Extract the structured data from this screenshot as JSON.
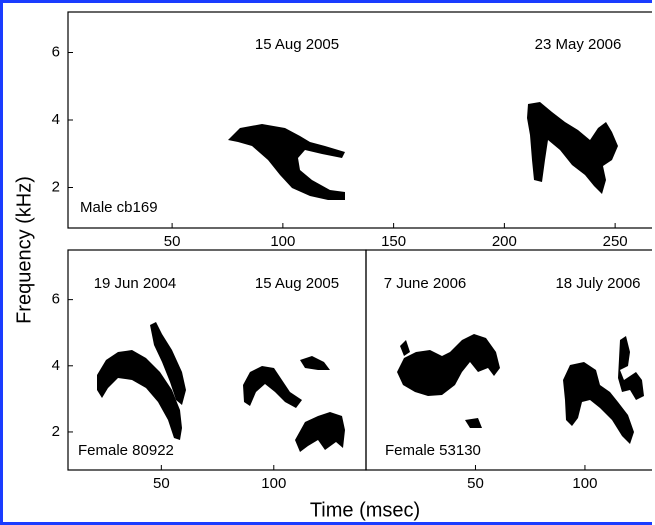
{
  "chart_data": [
    {
      "type": "spectrogram",
      "label": "Male cb169",
      "annotations": [
        "15 Aug 2005",
        "23 May 2006"
      ],
      "xlim": [
        3,
        268
      ],
      "xticks": [
        50,
        100,
        150,
        200,
        250
      ],
      "ylim": [
        0.8,
        7.2
      ],
      "yticks": [
        2,
        4,
        6
      ]
    },
    {
      "type": "spectrogram",
      "label": "Female 80922",
      "annotations": [
        "19 Jun 2004",
        "15 Aug 2005"
      ],
      "xlim": [
        8.5,
        141
      ],
      "xticks": [
        50,
        100
      ],
      "ylim": [
        0.85,
        7.5
      ],
      "yticks": [
        2,
        4,
        6
      ]
    },
    {
      "type": "spectrogram",
      "label": "Female 53130",
      "annotations": [
        "7 June 2006",
        "18 July 2006"
      ],
      "xlim": [
        0,
        132
      ],
      "xticks": [
        50,
        100
      ],
      "ylim": [
        0.85,
        7.5
      ]
    }
  ],
  "y_label": "Frequency (kHz)",
  "x_label": "Time (msec)"
}
